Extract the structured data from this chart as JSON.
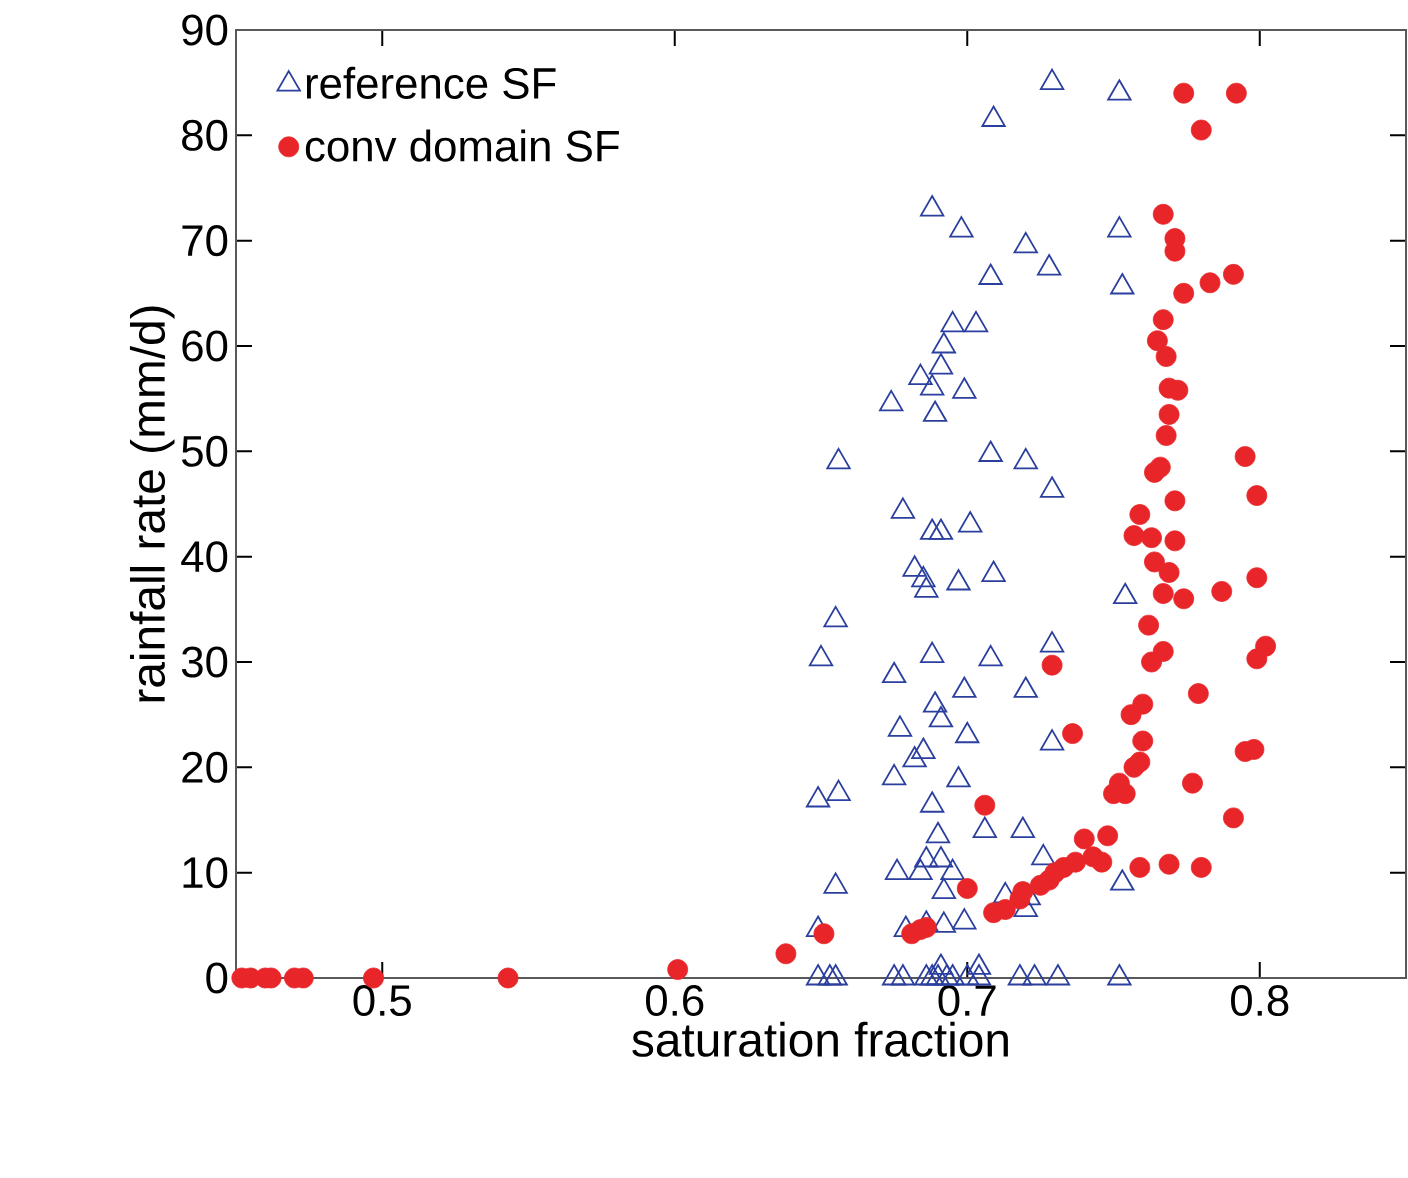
{
  "chart_data": {
    "type": "scatter",
    "xlabel": "saturation fraction",
    "ylabel": "rainfall rate (mm/d)",
    "xlim": [
      0.45,
      0.85
    ],
    "ylim": [
      0,
      90
    ],
    "xticks": [
      0.5,
      0.6,
      0.7,
      0.8
    ],
    "yticks": [
      0,
      10,
      20,
      30,
      40,
      50,
      60,
      70,
      80,
      90
    ],
    "grid": false,
    "legend": "top left",
    "series": [
      {
        "name": "reference SF",
        "color": "#2b3f9e",
        "marker": "triangle",
        "x": [
          0.649,
          0.655,
          0.653,
          0.675,
          0.678,
          0.686,
          0.688,
          0.69,
          0.693,
          0.695,
          0.7,
          0.704,
          0.718,
          0.723,
          0.731,
          0.752,
          0.709,
          0.729,
          0.752,
          0.688,
          0.698,
          0.695,
          0.703,
          0.692,
          0.691,
          0.684,
          0.688,
          0.689,
          0.699,
          0.674,
          0.708,
          0.72,
          0.728,
          0.752,
          0.753,
          0.656,
          0.708,
          0.72,
          0.678,
          0.688,
          0.691,
          0.701,
          0.729,
          0.682,
          0.685,
          0.686,
          0.697,
          0.709,
          0.655,
          0.65,
          0.688,
          0.708,
          0.729,
          0.754,
          0.675,
          0.699,
          0.72,
          0.689,
          0.691,
          0.677,
          0.7,
          0.729,
          0.706,
          0.682,
          0.685,
          0.675,
          0.697,
          0.688,
          0.719,
          0.69,
          0.686,
          0.691,
          0.684,
          0.676,
          0.695,
          0.726,
          0.655,
          0.692,
          0.649,
          0.656,
          0.753,
          0.699,
          0.686,
          0.692,
          0.679,
          0.649,
          0.72,
          0.721,
          0.713,
          0.691,
          0.704
        ],
        "values": [
          0,
          0,
          0,
          0,
          0,
          0,
          0,
          0,
          0,
          0,
          0,
          0,
          0,
          0,
          0,
          0,
          81.5,
          85,
          84,
          73,
          71,
          62,
          62,
          60,
          58,
          57,
          56,
          53.5,
          55.7,
          54.5,
          66.5,
          69.5,
          67.4,
          71,
          65.6,
          49,
          49.7,
          49,
          44.3,
          42.3,
          42.3,
          43,
          46.3,
          38.8,
          37.8,
          36.8,
          37.5,
          38.3,
          34,
          30.3,
          30.6,
          30.3,
          31.6,
          36.2,
          28.7,
          27.3,
          27.3,
          25.9,
          24.5,
          23.6,
          23,
          22.3,
          14,
          20.7,
          21.5,
          19,
          18.8,
          16.4,
          14,
          13.5,
          11.2,
          11.2,
          10,
          10,
          10,
          11.4,
          8.7,
          8.2,
          16.9,
          17.5,
          9,
          5.3,
          5.1,
          5,
          4.6,
          4.6,
          6.5,
          7.6,
          7.8,
          1,
          1
        ]
      },
      {
        "name": "conv domain SF",
        "color": "#e8262a",
        "marker": "circle",
        "x": [
          0.452,
          0.455,
          0.46,
          0.462,
          0.47,
          0.473,
          0.497,
          0.543,
          0.601,
          0.638,
          0.651,
          0.681,
          0.684,
          0.686,
          0.7,
          0.709,
          0.713,
          0.718,
          0.719,
          0.725,
          0.728,
          0.73,
          0.733,
          0.737,
          0.74,
          0.743,
          0.746,
          0.748,
          0.75,
          0.752,
          0.754,
          0.757,
          0.756,
          0.759,
          0.76,
          0.76,
          0.763,
          0.762,
          0.764,
          0.759,
          0.769,
          0.78,
          0.757,
          0.759,
          0.764,
          0.766,
          0.768,
          0.769,
          0.768,
          0.765,
          0.767,
          0.767,
          0.771,
          0.771,
          0.774,
          0.772,
          0.769,
          0.771,
          0.771,
          0.769,
          0.774,
          0.779,
          0.777,
          0.767,
          0.767,
          0.763,
          0.774,
          0.792,
          0.78,
          0.783,
          0.791,
          0.795,
          0.799,
          0.787,
          0.799,
          0.802,
          0.799,
          0.795,
          0.798,
          0.791,
          0.729,
          0.736,
          0.706
        ],
        "values": [
          0,
          0,
          0,
          0,
          0,
          0,
          0,
          0,
          0.8,
          2.3,
          4.2,
          4.2,
          4.6,
          4.8,
          8.5,
          6.2,
          6.5,
          7.5,
          8.2,
          8.8,
          9.3,
          10,
          10.5,
          11,
          13.2,
          11.5,
          11,
          13.5,
          17.5,
          18.5,
          17.5,
          20,
          25,
          20.5,
          22.5,
          26,
          30,
          33.5,
          39.5,
          10.5,
          10.8,
          10.5,
          42,
          44,
          48,
          48.5,
          51.5,
          53.5,
          59,
          60.5,
          62.5,
          72.5,
          70.2,
          69,
          65,
          55.8,
          56,
          45.3,
          41.5,
          38.5,
          36,
          27,
          18.5,
          36.5,
          31,
          41.8,
          84,
          84,
          80.5,
          66,
          66.8,
          49.5,
          45.8,
          36.7,
          38,
          31.5,
          30.3,
          21.5,
          21.7,
          15.2,
          29.7,
          23.2,
          16.4
        ]
      }
    ]
  }
}
